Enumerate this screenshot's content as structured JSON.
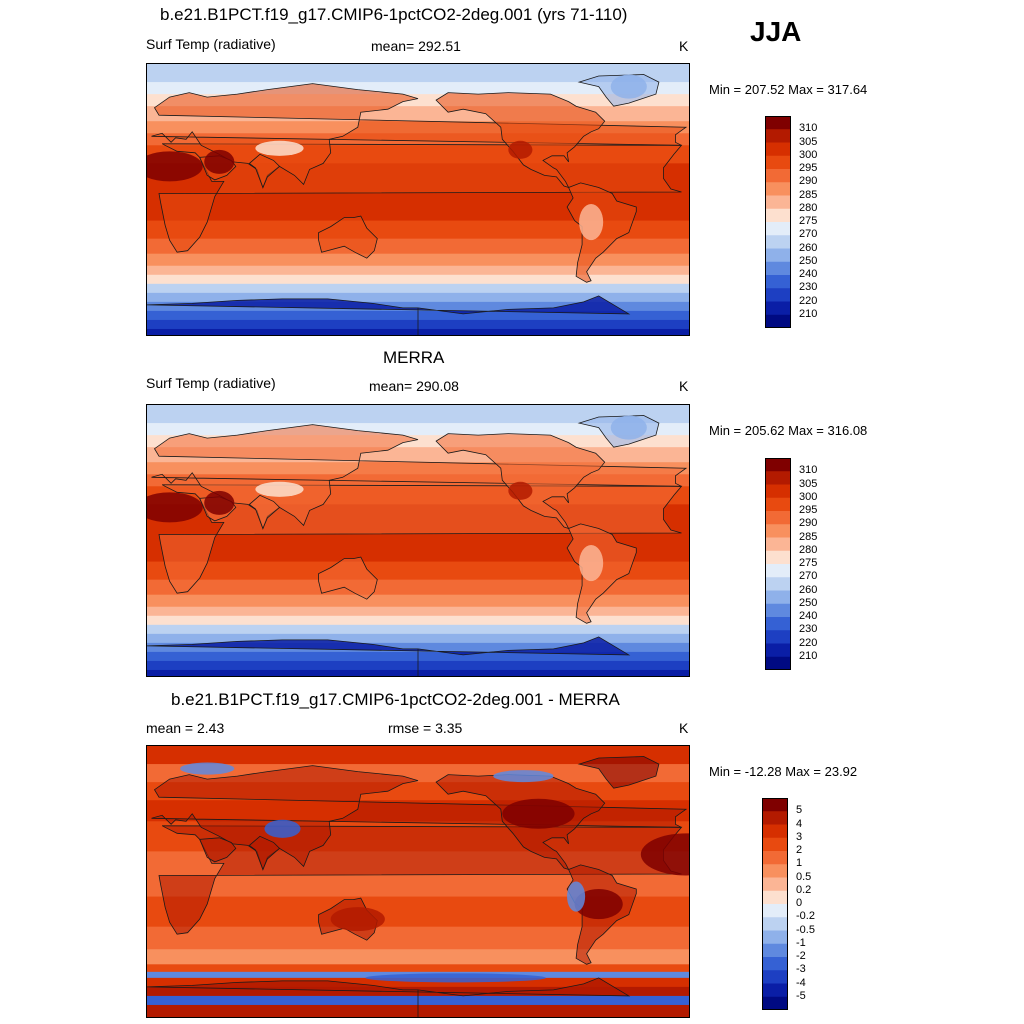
{
  "season": "JJA",
  "panels": [
    {
      "id": "model",
      "title": "b.e21.B1PCT.f19_g17.CMIP6-1pctCO2-2deg.001 (yrs 71-110)",
      "left_label": "Surf Temp (radiative)",
      "center_label": "mean= 292.51",
      "units": "K",
      "minmax": "Min = 207.52 Max = 317.64",
      "palette": "abs"
    },
    {
      "id": "obs",
      "title": "MERRA",
      "left_label": "Surf Temp (radiative)",
      "center_label": "mean= 290.08",
      "units": "K",
      "minmax": "Min = 205.62 Max = 316.08",
      "palette": "abs"
    },
    {
      "id": "diff",
      "title": "b.e21.B1PCT.f19_g17.CMIP6-1pctCO2-2deg.001 - MERRA",
      "left_label": "mean =   2.43",
      "center_label": "rmse =   3.35",
      "units": "K",
      "minmax": "Min = -12.28 Max =  23.92",
      "palette": "diff"
    }
  ],
  "colorbars": {
    "abs": {
      "labels": [
        "310",
        "305",
        "300",
        "295",
        "290",
        "285",
        "280",
        "275",
        "270",
        "260",
        "250",
        "240",
        "230",
        "220",
        "210"
      ],
      "colors": [
        "#7f0000",
        "#b31a00",
        "#d62f00",
        "#e84a10",
        "#f26a35",
        "#f8905e",
        "#fbb595",
        "#fde0cf",
        "#e3edf9",
        "#bcd2f1",
        "#8fb1ea",
        "#5f89df",
        "#3561d4",
        "#1d3fc2",
        "#0a1ea6",
        "#000a82"
      ]
    },
    "diff": {
      "labels": [
        "5",
        "4",
        "3",
        "2",
        "1",
        "0.5",
        "0.2",
        "0",
        "-0.2",
        "-0.5",
        "-1",
        "-2",
        "-3",
        "-4",
        "-5"
      ],
      "colors": [
        "#7f0000",
        "#b31a00",
        "#d62f00",
        "#e84a10",
        "#f26a35",
        "#f8905e",
        "#fbb595",
        "#fde0cf",
        "#e3edf9",
        "#bcd2f1",
        "#8fb1ea",
        "#5f89df",
        "#3561d4",
        "#1d3fc2",
        "#0a1ea6",
        "#000a82"
      ]
    }
  }
}
